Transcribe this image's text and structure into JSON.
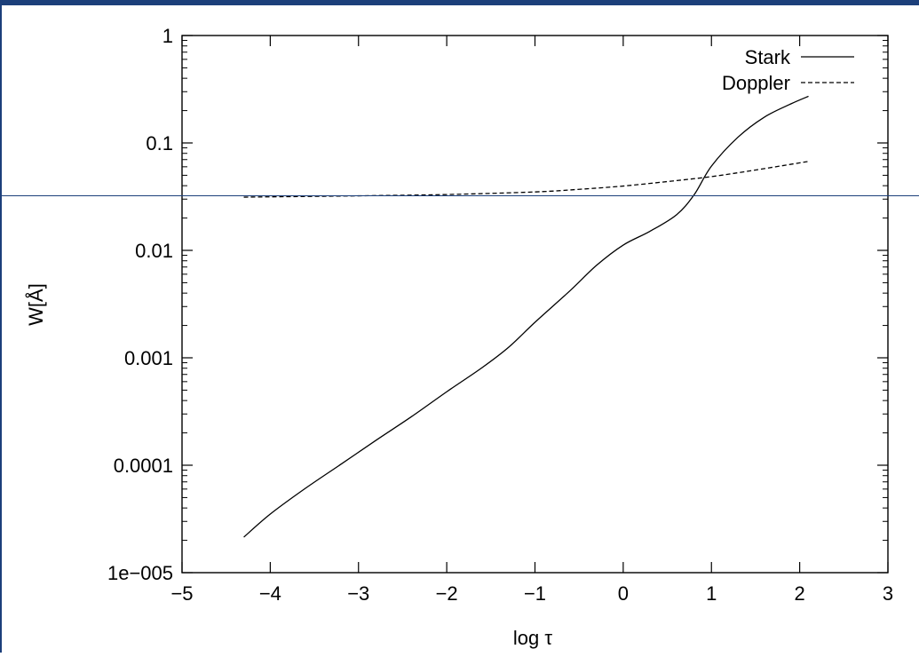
{
  "chart_data": {
    "type": "line",
    "title": "",
    "xlabel": "log τ",
    "ylabel": "W[Å]",
    "xlim": [
      -5,
      3
    ],
    "ylim": [
      1e-05,
      1
    ],
    "yscale": "log",
    "grid": false,
    "legend": "top-right",
    "xticks": [
      {
        "value": -5,
        "label": "−5"
      },
      {
        "value": -4,
        "label": "−4"
      },
      {
        "value": -3,
        "label": "−3"
      },
      {
        "value": -2,
        "label": "−2"
      },
      {
        "value": -1,
        "label": "−1"
      },
      {
        "value": 0,
        "label": "0"
      },
      {
        "value": 1,
        "label": "1"
      },
      {
        "value": 2,
        "label": "2"
      },
      {
        "value": 3,
        "label": "3"
      }
    ],
    "yticks": [
      {
        "value": 1,
        "label": "1"
      },
      {
        "value": 0.1,
        "label": "0.1"
      },
      {
        "value": 0.01,
        "label": "0.01"
      },
      {
        "value": 0.001,
        "label": "0.001"
      },
      {
        "value": 0.0001,
        "label": "0.0001"
      },
      {
        "value": 1e-05,
        "label": "1e−005"
      }
    ],
    "series": [
      {
        "name": "Stark",
        "style": "solid",
        "points": [
          [
            -4.3,
            2.14e-05
          ],
          [
            -4.0,
            3.51e-05
          ],
          [
            -3.6,
            6.11e-05
          ],
          [
            -3.2,
            0.000102
          ],
          [
            -2.8,
            0.000171
          ],
          [
            -2.4,
            0.000283
          ],
          [
            -2.0,
            0.000483
          ],
          [
            -1.6,
            0.000809
          ],
          [
            -1.3,
            0.00125
          ],
          [
            -1.0,
            0.00214
          ],
          [
            -0.6,
            0.00423
          ],
          [
            -0.3,
            0.00728
          ],
          [
            0.0,
            0.0112
          ],
          [
            0.3,
            0.015
          ],
          [
            0.6,
            0.0213
          ],
          [
            0.8,
            0.0326
          ],
          [
            1.0,
            0.0608
          ],
          [
            1.3,
            0.113
          ],
          [
            1.6,
            0.174
          ],
          [
            1.9,
            0.231
          ],
          [
            2.1,
            0.272
          ]
        ]
      },
      {
        "name": "Doppler",
        "style": "dashed",
        "points": [
          [
            -4.3,
            0.0313
          ],
          [
            -3.0,
            0.0322
          ],
          [
            -2.0,
            0.0331
          ],
          [
            -1.0,
            0.035
          ],
          [
            -0.5,
            0.037
          ],
          [
            0.0,
            0.0397
          ],
          [
            0.5,
            0.0437
          ],
          [
            1.0,
            0.0486
          ],
          [
            1.5,
            0.056
          ],
          [
            2.1,
            0.0673
          ]
        ]
      }
    ]
  }
}
